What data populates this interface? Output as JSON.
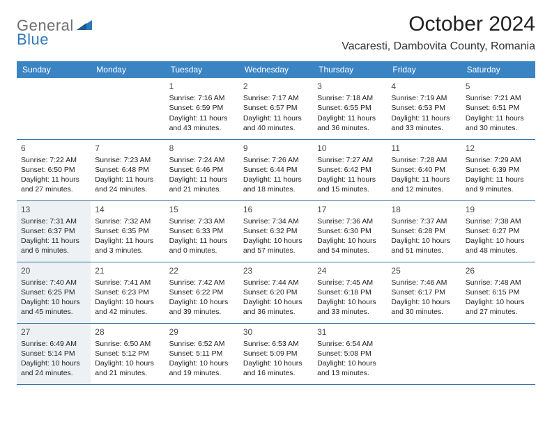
{
  "logo": {
    "part1": "General",
    "part2": "Blue"
  },
  "title": "October 2024",
  "location": "Vacaresti, Dambovita County, Romania",
  "colors": {
    "header_bg": "#3b84c4",
    "header_text": "#ffffff",
    "row_border": "#2d6fa8",
    "shaded_bg": "#eef1f3",
    "logo_gray": "#6d6e71",
    "logo_blue": "#2d78bb"
  },
  "day_headers": [
    "Sunday",
    "Monday",
    "Tuesday",
    "Wednesday",
    "Thursday",
    "Friday",
    "Saturday"
  ],
  "weeks": [
    [
      {
        "blank": true
      },
      {
        "blank": true
      },
      {
        "num": "1",
        "sunrise": "Sunrise: 7:16 AM",
        "sunset": "Sunset: 6:59 PM",
        "dl1": "Daylight: 11 hours",
        "dl2": "and 43 minutes."
      },
      {
        "num": "2",
        "sunrise": "Sunrise: 7:17 AM",
        "sunset": "Sunset: 6:57 PM",
        "dl1": "Daylight: 11 hours",
        "dl2": "and 40 minutes."
      },
      {
        "num": "3",
        "sunrise": "Sunrise: 7:18 AM",
        "sunset": "Sunset: 6:55 PM",
        "dl1": "Daylight: 11 hours",
        "dl2": "and 36 minutes."
      },
      {
        "num": "4",
        "sunrise": "Sunrise: 7:19 AM",
        "sunset": "Sunset: 6:53 PM",
        "dl1": "Daylight: 11 hours",
        "dl2": "and 33 minutes."
      },
      {
        "num": "5",
        "sunrise": "Sunrise: 7:21 AM",
        "sunset": "Sunset: 6:51 PM",
        "dl1": "Daylight: 11 hours",
        "dl2": "and 30 minutes."
      }
    ],
    [
      {
        "num": "6",
        "sunrise": "Sunrise: 7:22 AM",
        "sunset": "Sunset: 6:50 PM",
        "dl1": "Daylight: 11 hours",
        "dl2": "and 27 minutes."
      },
      {
        "num": "7",
        "sunrise": "Sunrise: 7:23 AM",
        "sunset": "Sunset: 6:48 PM",
        "dl1": "Daylight: 11 hours",
        "dl2": "and 24 minutes."
      },
      {
        "num": "8",
        "sunrise": "Sunrise: 7:24 AM",
        "sunset": "Sunset: 6:46 PM",
        "dl1": "Daylight: 11 hours",
        "dl2": "and 21 minutes."
      },
      {
        "num": "9",
        "sunrise": "Sunrise: 7:26 AM",
        "sunset": "Sunset: 6:44 PM",
        "dl1": "Daylight: 11 hours",
        "dl2": "and 18 minutes."
      },
      {
        "num": "10",
        "sunrise": "Sunrise: 7:27 AM",
        "sunset": "Sunset: 6:42 PM",
        "dl1": "Daylight: 11 hours",
        "dl2": "and 15 minutes."
      },
      {
        "num": "11",
        "sunrise": "Sunrise: 7:28 AM",
        "sunset": "Sunset: 6:40 PM",
        "dl1": "Daylight: 11 hours",
        "dl2": "and 12 minutes."
      },
      {
        "num": "12",
        "sunrise": "Sunrise: 7:29 AM",
        "sunset": "Sunset: 6:39 PM",
        "dl1": "Daylight: 11 hours",
        "dl2": "and 9 minutes."
      }
    ],
    [
      {
        "num": "13",
        "shaded": true,
        "sunrise": "Sunrise: 7:31 AM",
        "sunset": "Sunset: 6:37 PM",
        "dl1": "Daylight: 11 hours",
        "dl2": "and 6 minutes."
      },
      {
        "num": "14",
        "sunrise": "Sunrise: 7:32 AM",
        "sunset": "Sunset: 6:35 PM",
        "dl1": "Daylight: 11 hours",
        "dl2": "and 3 minutes."
      },
      {
        "num": "15",
        "sunrise": "Sunrise: 7:33 AM",
        "sunset": "Sunset: 6:33 PM",
        "dl1": "Daylight: 11 hours",
        "dl2": "and 0 minutes."
      },
      {
        "num": "16",
        "sunrise": "Sunrise: 7:34 AM",
        "sunset": "Sunset: 6:32 PM",
        "dl1": "Daylight: 10 hours",
        "dl2": "and 57 minutes."
      },
      {
        "num": "17",
        "sunrise": "Sunrise: 7:36 AM",
        "sunset": "Sunset: 6:30 PM",
        "dl1": "Daylight: 10 hours",
        "dl2": "and 54 minutes."
      },
      {
        "num": "18",
        "sunrise": "Sunrise: 7:37 AM",
        "sunset": "Sunset: 6:28 PM",
        "dl1": "Daylight: 10 hours",
        "dl2": "and 51 minutes."
      },
      {
        "num": "19",
        "sunrise": "Sunrise: 7:38 AM",
        "sunset": "Sunset: 6:27 PM",
        "dl1": "Daylight: 10 hours",
        "dl2": "and 48 minutes."
      }
    ],
    [
      {
        "num": "20",
        "shaded": true,
        "sunrise": "Sunrise: 7:40 AM",
        "sunset": "Sunset: 6:25 PM",
        "dl1": "Daylight: 10 hours",
        "dl2": "and 45 minutes."
      },
      {
        "num": "21",
        "sunrise": "Sunrise: 7:41 AM",
        "sunset": "Sunset: 6:23 PM",
        "dl1": "Daylight: 10 hours",
        "dl2": "and 42 minutes."
      },
      {
        "num": "22",
        "sunrise": "Sunrise: 7:42 AM",
        "sunset": "Sunset: 6:22 PM",
        "dl1": "Daylight: 10 hours",
        "dl2": "and 39 minutes."
      },
      {
        "num": "23",
        "sunrise": "Sunrise: 7:44 AM",
        "sunset": "Sunset: 6:20 PM",
        "dl1": "Daylight: 10 hours",
        "dl2": "and 36 minutes."
      },
      {
        "num": "24",
        "sunrise": "Sunrise: 7:45 AM",
        "sunset": "Sunset: 6:18 PM",
        "dl1": "Daylight: 10 hours",
        "dl2": "and 33 minutes."
      },
      {
        "num": "25",
        "sunrise": "Sunrise: 7:46 AM",
        "sunset": "Sunset: 6:17 PM",
        "dl1": "Daylight: 10 hours",
        "dl2": "and 30 minutes."
      },
      {
        "num": "26",
        "sunrise": "Sunrise: 7:48 AM",
        "sunset": "Sunset: 6:15 PM",
        "dl1": "Daylight: 10 hours",
        "dl2": "and 27 minutes."
      }
    ],
    [
      {
        "num": "27",
        "shaded": true,
        "sunrise": "Sunrise: 6:49 AM",
        "sunset": "Sunset: 5:14 PM",
        "dl1": "Daylight: 10 hours",
        "dl2": "and 24 minutes."
      },
      {
        "num": "28",
        "sunrise": "Sunrise: 6:50 AM",
        "sunset": "Sunset: 5:12 PM",
        "dl1": "Daylight: 10 hours",
        "dl2": "and 21 minutes."
      },
      {
        "num": "29",
        "sunrise": "Sunrise: 6:52 AM",
        "sunset": "Sunset: 5:11 PM",
        "dl1": "Daylight: 10 hours",
        "dl2": "and 19 minutes."
      },
      {
        "num": "30",
        "sunrise": "Sunrise: 6:53 AM",
        "sunset": "Sunset: 5:09 PM",
        "dl1": "Daylight: 10 hours",
        "dl2": "and 16 minutes."
      },
      {
        "num": "31",
        "sunrise": "Sunrise: 6:54 AM",
        "sunset": "Sunset: 5:08 PM",
        "dl1": "Daylight: 10 hours",
        "dl2": "and 13 minutes."
      },
      {
        "blank": true
      },
      {
        "blank": true
      }
    ]
  ]
}
